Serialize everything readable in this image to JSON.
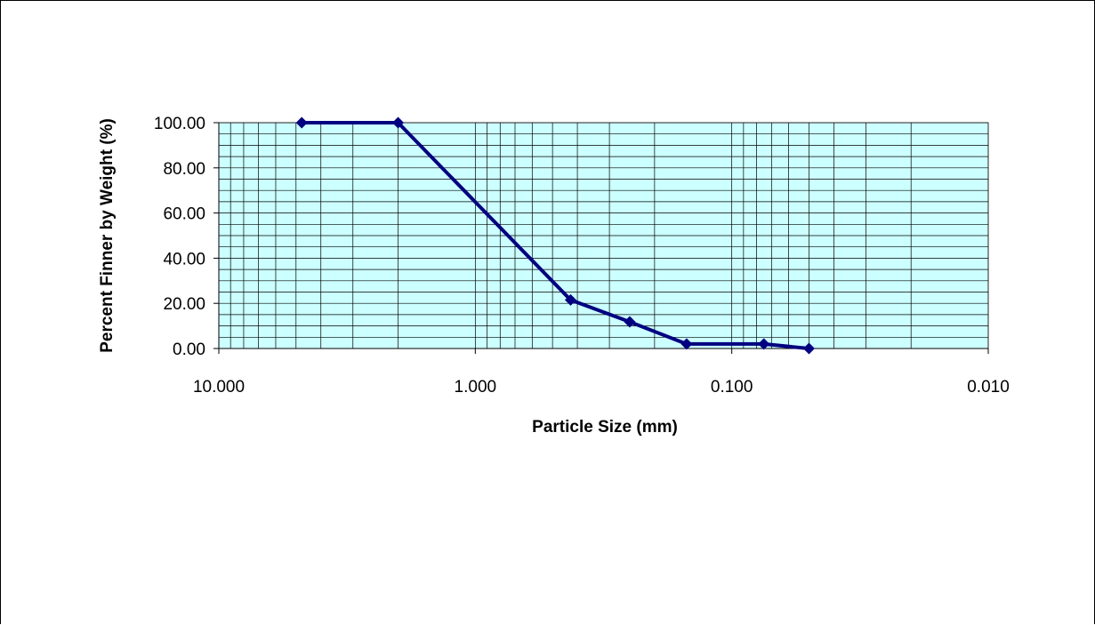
{
  "chart_data": {
    "type": "line",
    "title": "",
    "xlabel": "Particle Size (mm)",
    "ylabel": "Percent Finner by Weight (%)",
    "x_scale": "log",
    "x_reversed": true,
    "xlim": [
      10,
      0.01
    ],
    "ylim": [
      0,
      100
    ],
    "x_ticks": [
      10,
      1,
      0.1,
      0.01
    ],
    "x_tick_labels": [
      "10.000",
      "1.000",
      "0.100",
      "0.010"
    ],
    "y_ticks": [
      0,
      20,
      40,
      60,
      80,
      100
    ],
    "y_tick_labels": [
      "0.00",
      "20.00",
      "40.00",
      "60.00",
      "80.00",
      "100.00"
    ],
    "grid": true,
    "legend": "none",
    "series": [
      {
        "color": "#000080",
        "marker": "diamond",
        "points": [
          {
            "x": 4.75,
            "y": 100
          },
          {
            "x": 2.0,
            "y": 100
          },
          {
            "x": 0.425,
            "y": 21.5
          },
          {
            "x": 0.25,
            "y": 11.8
          },
          {
            "x": 0.15,
            "y": 2.0
          },
          {
            "x": 0.075,
            "y": 2.0
          },
          {
            "x": 0.05,
            "y": 0.0
          }
        ]
      }
    ],
    "plot_bg": "#ccffff",
    "grid_color": "#000000"
  }
}
